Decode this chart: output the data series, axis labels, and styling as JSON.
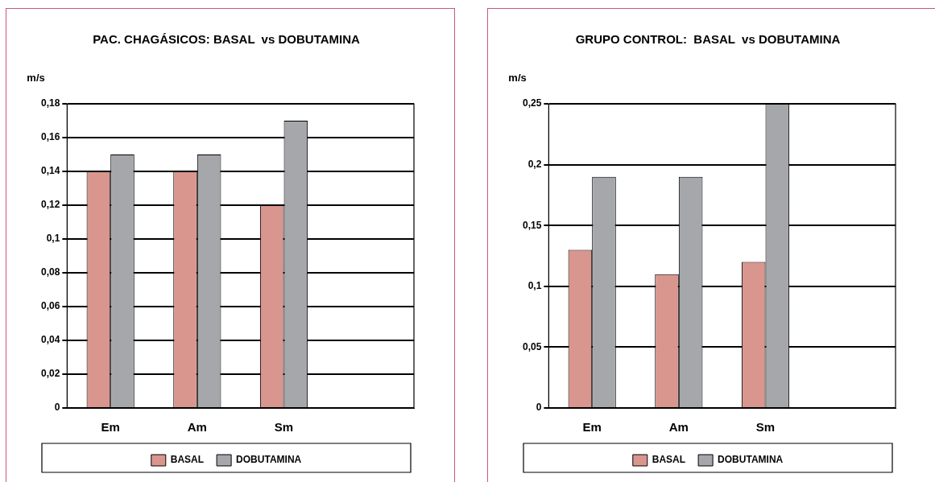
{
  "chart_data": [
    {
      "type": "bar",
      "title": "PAC. CHAGÁSICOS: BASAL  vs DOBUTAMINA",
      "ylabel": "m/s",
      "categories": [
        "Em",
        "Am",
        "Sm",
        null
      ],
      "series": [
        {
          "name": "BASAL",
          "color": "#d9968f",
          "values": [
            0.14,
            0.14,
            0.12,
            null
          ]
        },
        {
          "name": "DOBUTAMINA",
          "color": "#a6a7ab",
          "values": [
            0.15,
            0.15,
            0.17,
            null
          ]
        }
      ],
      "ylim": [
        0,
        0.18
      ],
      "yticks": [
        {
          "value": 0,
          "label": "0"
        },
        {
          "value": 0.02,
          "label": "0,02"
        },
        {
          "value": 0.04,
          "label": "0,04"
        },
        {
          "value": 0.06,
          "label": "0,06"
        },
        {
          "value": 0.08,
          "label": "0,08"
        },
        {
          "value": 0.1,
          "label": "0,1"
        },
        {
          "value": 0.12,
          "label": "0,12"
        },
        {
          "value": 0.14,
          "label": "0,14"
        },
        {
          "value": 0.16,
          "label": "0,16"
        },
        {
          "value": 0.18,
          "label": "0,18"
        }
      ],
      "grid": "y",
      "legend": "bottom"
    },
    {
      "type": "bar",
      "title": "GRUPO CONTROL:  BASAL  vs DOBUTAMINA",
      "ylabel": "m/s",
      "categories": [
        "Em",
        "Am",
        "Sm",
        null
      ],
      "series": [
        {
          "name": "BASAL",
          "color": "#d9968f",
          "values": [
            0.13,
            0.11,
            0.12,
            null
          ]
        },
        {
          "name": "DOBUTAMINA",
          "color": "#a6a7ab",
          "values": [
            0.19,
            0.19,
            0.25,
            null
          ]
        }
      ],
      "ylim": [
        0,
        0.25
      ],
      "yticks": [
        {
          "value": 0,
          "label": "0"
        },
        {
          "value": 0.05,
          "label": "0,05"
        },
        {
          "value": 0.1,
          "label": "0,1"
        },
        {
          "value": 0.15,
          "label": "0,15"
        },
        {
          "value": 0.2,
          "label": "0,2"
        },
        {
          "value": 0.25,
          "label": "0,25"
        }
      ],
      "grid": "y",
      "legend": "bottom"
    }
  ]
}
